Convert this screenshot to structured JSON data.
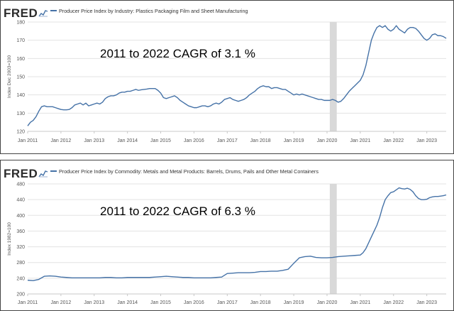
{
  "brand_logo": "FRED",
  "chart_data": [
    {
      "type": "line",
      "title": "Producer Price Index by Industry: Plastics Packaging Film and Sheet Manufacturing",
      "ylabel": "Index Dec 2003=100",
      "annotation": "2011 to 2022 CAGR of 3.1 %",
      "ylim": [
        120,
        180
      ],
      "yticks": [
        "120",
        "130",
        "140",
        "150",
        "160",
        "170",
        "180"
      ],
      "xlim": [
        "2011-01",
        "2023-08"
      ],
      "xticks": [
        "Jan 2011",
        "Jan 2012",
        "Jan 2013",
        "Jan 2014",
        "Jan 2015",
        "Jan 2016",
        "Jan 2017",
        "Jan 2018",
        "Jan 2019",
        "Jan 2020",
        "Jan 2021",
        "Jan 2022",
        "Jan 2023"
      ],
      "recession_shade": [
        "2020-02",
        "2020-04"
      ],
      "line_color": "#4572a7",
      "series": [
        {
          "x": [
            "2011-01",
            "2011-02",
            "2011-03",
            "2011-04",
            "2011-05",
            "2011-06",
            "2011-07",
            "2011-08",
            "2011-09",
            "2011-10",
            "2011-11",
            "2011-12",
            "2012-01",
            "2012-02",
            "2012-03",
            "2012-04",
            "2012-05",
            "2012-06",
            "2012-07",
            "2012-08",
            "2012-09",
            "2012-10",
            "2012-11",
            "2012-12",
            "2013-01",
            "2013-02",
            "2013-03",
            "2013-04",
            "2013-05",
            "2013-06",
            "2013-07",
            "2013-08",
            "2013-09",
            "2013-10",
            "2013-11",
            "2013-12",
            "2014-01",
            "2014-02",
            "2014-03",
            "2014-04",
            "2014-05",
            "2014-06",
            "2014-07",
            "2014-08",
            "2014-09",
            "2014-10",
            "2014-11",
            "2014-12",
            "2015-01",
            "2015-02",
            "2015-03",
            "2015-04",
            "2015-05",
            "2015-06",
            "2015-07",
            "2015-08",
            "2015-09",
            "2015-10",
            "2015-11",
            "2015-12",
            "2016-01",
            "2016-02",
            "2016-03",
            "2016-04",
            "2016-05",
            "2016-06",
            "2016-07",
            "2016-08",
            "2016-09",
            "2016-10",
            "2016-11",
            "2016-12",
            "2017-01",
            "2017-02",
            "2017-03",
            "2017-04",
            "2017-05",
            "2017-06",
            "2017-07",
            "2017-08",
            "2017-09",
            "2017-10",
            "2017-11",
            "2017-12",
            "2018-01",
            "2018-02",
            "2018-03",
            "2018-04",
            "2018-05",
            "2018-06",
            "2018-07",
            "2018-08",
            "2018-09",
            "2018-10",
            "2018-11",
            "2018-12",
            "2019-01",
            "2019-02",
            "2019-03",
            "2019-04",
            "2019-05",
            "2019-06",
            "2019-07",
            "2019-08",
            "2019-09",
            "2019-10",
            "2019-11",
            "2019-12",
            "2020-01",
            "2020-02",
            "2020-03",
            "2020-04",
            "2020-05",
            "2020-06",
            "2020-07",
            "2020-08",
            "2020-09",
            "2020-10",
            "2020-11",
            "2020-12",
            "2021-01",
            "2021-02",
            "2021-03",
            "2021-04",
            "2021-05",
            "2021-06",
            "2021-07",
            "2021-08",
            "2021-09",
            "2021-10",
            "2021-11",
            "2021-12",
            "2022-01",
            "2022-02",
            "2022-03",
            "2022-04",
            "2022-05",
            "2022-06",
            "2022-07",
            "2022-08",
            "2022-09",
            "2022-10",
            "2022-11",
            "2022-12",
            "2023-01",
            "2023-02",
            "2023-03",
            "2023-04",
            "2023-05",
            "2023-06",
            "2023-07",
            "2023-08"
          ],
          "values": [
            123,
            125,
            126,
            128,
            131,
            133.5,
            134,
            133.5,
            133.5,
            133.5,
            133,
            132.5,
            132,
            131.8,
            131.8,
            132,
            133,
            134.5,
            135,
            135.5,
            134.5,
            135.5,
            134,
            134.5,
            135,
            135.5,
            135,
            136,
            138,
            139,
            139.5,
            139.5,
            140,
            141,
            141.5,
            141.5,
            142,
            142,
            142.5,
            143,
            142.5,
            142.8,
            143,
            143.2,
            143.5,
            143.5,
            143.5,
            142.5,
            141,
            138.5,
            138,
            138.5,
            139,
            139.5,
            138.5,
            137,
            136,
            135,
            134,
            133.5,
            133,
            133,
            133.5,
            134,
            134,
            133.5,
            134,
            135,
            135.5,
            135,
            136,
            137.5,
            138,
            138.5,
            137.5,
            137,
            136.5,
            137,
            137.5,
            138.5,
            140,
            141,
            142,
            143.5,
            144.5,
            145,
            144.5,
            144.5,
            143.5,
            144,
            144,
            143.5,
            143,
            143,
            142,
            141,
            140,
            140.5,
            140,
            140.5,
            140,
            139.5,
            139,
            138.5,
            138,
            137.5,
            137.5,
            137,
            137,
            137,
            137.5,
            137,
            136,
            136.5,
            138,
            140,
            142,
            143.5,
            145,
            146.5,
            148,
            151,
            156,
            163,
            170,
            174,
            177,
            178,
            177,
            178,
            176,
            175,
            176,
            178,
            176,
            175,
            174,
            176,
            177,
            177,
            176.5,
            175,
            173,
            171,
            170,
            171,
            173,
            173.5,
            172.5,
            172.5,
            172,
            171
          ]
        }
      ]
    },
    {
      "type": "line",
      "title": "Producer Price Index by Commodity: Metals and Metal Products: Barrels, Drums, Pails and Other Metal Containers",
      "ylabel": "Index 1982=100",
      "annotation": "2011 to 2022 CAGR of 6.3 %",
      "ylim": [
        200,
        480
      ],
      "yticks": [
        "200",
        "240",
        "280",
        "320",
        "360",
        "400",
        "440",
        "480"
      ],
      "xlim": [
        "2011-01",
        "2023-08"
      ],
      "xticks": [
        "Jan 2011",
        "Jan 2012",
        "Jan 2013",
        "Jan 2014",
        "Jan 2015",
        "Jan 2016",
        "Jan 2017",
        "Jan 2018",
        "Jan 2019",
        "Jan 2020",
        "Jan 2021",
        "Jan 2022",
        "Jan 2023"
      ],
      "recession_shade": [
        "2020-02",
        "2020-04"
      ],
      "line_color": "#4572a7",
      "series": [
        {
          "x": [
            "2011-01",
            "2011-03",
            "2011-05",
            "2011-07",
            "2011-09",
            "2011-11",
            "2012-01",
            "2012-03",
            "2012-05",
            "2012-07",
            "2012-09",
            "2012-11",
            "2013-01",
            "2013-03",
            "2013-05",
            "2013-07",
            "2013-09",
            "2013-11",
            "2014-01",
            "2014-03",
            "2014-05",
            "2014-07",
            "2014-09",
            "2014-11",
            "2015-01",
            "2015-03",
            "2015-05",
            "2015-07",
            "2015-09",
            "2015-11",
            "2016-01",
            "2016-03",
            "2016-05",
            "2016-07",
            "2016-09",
            "2016-11",
            "2017-01",
            "2017-03",
            "2017-05",
            "2017-07",
            "2017-09",
            "2017-11",
            "2018-01",
            "2018-03",
            "2018-05",
            "2018-07",
            "2018-09",
            "2018-11",
            "2019-01",
            "2019-03",
            "2019-05",
            "2019-07",
            "2019-09",
            "2019-11",
            "2020-01",
            "2020-03",
            "2020-05",
            "2020-07",
            "2020-09",
            "2020-11",
            "2021-01",
            "2021-02",
            "2021-03",
            "2021-04",
            "2021-05",
            "2021-06",
            "2021-07",
            "2021-08",
            "2021-09",
            "2021-10",
            "2021-11",
            "2021-12",
            "2022-01",
            "2022-02",
            "2022-03",
            "2022-04",
            "2022-05",
            "2022-06",
            "2022-07",
            "2022-08",
            "2022-09",
            "2022-10",
            "2022-11",
            "2022-12",
            "2023-01",
            "2023-02",
            "2023-03",
            "2023-04",
            "2023-05",
            "2023-06",
            "2023-07",
            "2023-08"
          ],
          "values": [
            235,
            234,
            237,
            245,
            246,
            245,
            243,
            242,
            241,
            241,
            241,
            241,
            241,
            241,
            242,
            242,
            241,
            241,
            242,
            242,
            242,
            242,
            242,
            243,
            244,
            245,
            244,
            243,
            242,
            242,
            241,
            241,
            241,
            241,
            242,
            243,
            252,
            253,
            254,
            254,
            254,
            255,
            257,
            257,
            258,
            258,
            260,
            263,
            278,
            292,
            295,
            296,
            293,
            292,
            292,
            293,
            295,
            296,
            297,
            298,
            299,
            305,
            315,
            330,
            345,
            360,
            375,
            395,
            420,
            440,
            450,
            458,
            460,
            465,
            470,
            468,
            467,
            469,
            466,
            460,
            450,
            443,
            440,
            440,
            441,
            445,
            447,
            448,
            448,
            449,
            450,
            452
          ]
        }
      ]
    }
  ]
}
